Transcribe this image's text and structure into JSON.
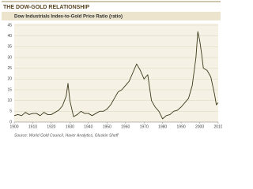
{
  "chart_data": {
    "type": "line",
    "title": "THE DOW-GOLD RELATIONSHIP",
    "subtitle": "Dow Industrials Index-to-Gold Price Ratio (ratio)",
    "source": "Source: World Gold Council, Haver Analytics, Gluskin Sheff",
    "x": [
      1900,
      1902,
      1904,
      1906,
      1908,
      1910,
      1912,
      1914,
      1916,
      1918,
      1920,
      1922,
      1924,
      1926,
      1928,
      1929,
      1930,
      1932,
      1934,
      1936,
      1938,
      1940,
      1942,
      1944,
      1946,
      1948,
      1950,
      1952,
      1954,
      1956,
      1958,
      1960,
      1962,
      1964,
      1966,
      1968,
      1970,
      1972,
      1974,
      1976,
      1978,
      1980,
      1982,
      1984,
      1986,
      1988,
      1990,
      1992,
      1994,
      1996,
      1998,
      1999,
      2000,
      2001,
      2002,
      2004,
      2006,
      2008,
      2009,
      2010
    ],
    "series": [
      {
        "name": "Dow-to-Gold ratio",
        "color": "#3d3a1c",
        "values": [
          3,
          3.5,
          3,
          4.5,
          3.5,
          4,
          4,
          3,
          4.5,
          3.5,
          3.5,
          4.5,
          5.5,
          7.5,
          12,
          18,
          10,
          2.5,
          3.5,
          5,
          4,
          4,
          3,
          4,
          5,
          5,
          6,
          8,
          11,
          14,
          15,
          17,
          19,
          23,
          27,
          24,
          20,
          22,
          10,
          7,
          5,
          1.5,
          3,
          3.5,
          5,
          5.5,
          7,
          9,
          11,
          17,
          30,
          42,
          38,
          32,
          25,
          24,
          21,
          13,
          8,
          9
        ]
      }
    ],
    "xlim": [
      1900,
      2010
    ],
    "xticks": [
      1900,
      1910,
      1920,
      1930,
      1940,
      1950,
      1960,
      1970,
      1980,
      1990,
      2000,
      2010
    ],
    "ylim": [
      0,
      45
    ],
    "yticks": [
      0,
      5,
      10,
      15,
      20,
      25,
      30,
      35,
      40,
      45
    ],
    "grid": true
  }
}
